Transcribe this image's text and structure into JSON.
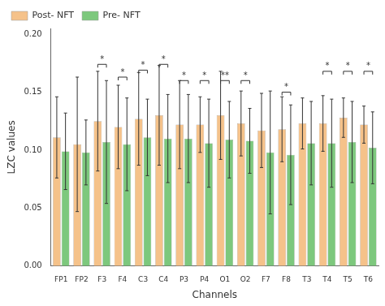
{
  "chart_data": {
    "type": "bar",
    "categories": [
      "FP1",
      "FP2",
      "F3",
      "F4",
      "C3",
      "C4",
      "P3",
      "P4",
      "O1",
      "O2",
      "F7",
      "F8",
      "T3",
      "T4",
      "T5",
      "T6"
    ],
    "series": [
      {
        "name": "Post- NFT",
        "color": "#F5C28A",
        "values": [
          0.111,
          0.105,
          0.125,
          0.12,
          0.127,
          0.13,
          0.122,
          0.122,
          0.13,
          0.123,
          0.117,
          0.118,
          0.123,
          0.123,
          0.128,
          0.122
        ],
        "errors": [
          0.035,
          0.058,
          0.043,
          0.036,
          0.04,
          0.043,
          0.038,
          0.024,
          0.038,
          0.028,
          0.032,
          0.028,
          0.022,
          0.024,
          0.017,
          0.016
        ]
      },
      {
        "name": "Pre- NFT",
        "color": "#7DC87D",
        "values": [
          0.099,
          0.098,
          0.107,
          0.105,
          0.111,
          0.11,
          0.11,
          0.106,
          0.109,
          0.108,
          0.098,
          0.096,
          0.106,
          0.106,
          0.107,
          0.102
        ],
        "errors": [
          0.033,
          0.028,
          0.053,
          0.04,
          0.033,
          0.038,
          0.038,
          0.038,
          0.033,
          0.028,
          0.053,
          0.043,
          0.036,
          0.038,
          0.035,
          0.031
        ]
      }
    ],
    "annotations": [
      {
        "category": "F3",
        "label": "*",
        "y": 0.174
      },
      {
        "category": "F4",
        "label": "*",
        "y": 0.163
      },
      {
        "category": "C3",
        "label": "*",
        "y": 0.169
      },
      {
        "category": "C4",
        "label": "*",
        "y": 0.174
      },
      {
        "category": "P3",
        "label": "*",
        "y": 0.16
      },
      {
        "category": "P4",
        "label": "*",
        "y": 0.16
      },
      {
        "category": "O1",
        "label": "**",
        "y": 0.16
      },
      {
        "category": "O2",
        "label": "*",
        "y": 0.16
      },
      {
        "category": "F8",
        "label": "*",
        "y": 0.15
      },
      {
        "category": "T4",
        "label": "*",
        "y": 0.168
      },
      {
        "category": "T5",
        "label": "*",
        "y": 0.168
      },
      {
        "category": "T6",
        "label": "*",
        "y": 0.168
      }
    ],
    "xlabel": "Channels",
    "ylabel": "LZC values",
    "ylim": [
      0,
      0.205
    ],
    "yticks": [
      {
        "value": 0,
        "label": "0.00"
      },
      0.05,
      {
        "value": 0.1,
        "label": "0.10"
      },
      0.15,
      {
        "value": 0.2,
        "label": "0.20"
      }
    ],
    "grid": false,
    "legend": "upper left"
  }
}
